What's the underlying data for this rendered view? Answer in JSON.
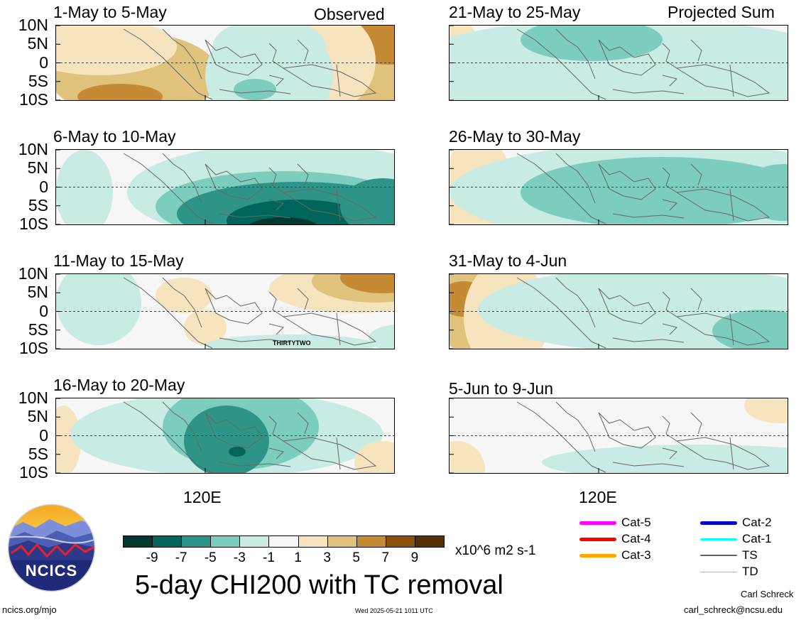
{
  "header": {
    "observed_label": "Observed",
    "projected_label": "Projected Sum"
  },
  "panels": [
    {
      "title": "1-May to 5-May"
    },
    {
      "title": "21-May to 25-May"
    },
    {
      "title": "6-May to 10-May"
    },
    {
      "title": "26-May to 30-May"
    },
    {
      "title": "11-May to 15-May",
      "annotation": "THIRTYTWO"
    },
    {
      "title": "31-May to 4-Jun"
    },
    {
      "title": "16-May to 20-May"
    },
    {
      "title": "5-Jun to 9-Jun"
    }
  ],
  "axes": {
    "lat_labels": [
      "10N",
      "5N",
      "0",
      "5S",
      "10S"
    ],
    "lon_label": "120E"
  },
  "colorbar": {
    "tick_labels": [
      "-9",
      "-7",
      "-5",
      "-3",
      "-1",
      "1",
      "3",
      "5",
      "7",
      "9"
    ],
    "units": "x10^6 m2 s-1",
    "colors": [
      "#00392f",
      "#00655a",
      "#2f9488",
      "#7dcdbf",
      "#c8ebe4",
      "#f6f6f6",
      "#f5e4bd",
      "#dfc27c",
      "#c48a34",
      "#8b510a",
      "#533104"
    ]
  },
  "tc_legend": [
    {
      "label": "Cat-5",
      "color": "#ff00ff"
    },
    {
      "label": "Cat-2",
      "color": "#0000cc"
    },
    {
      "label": "Cat-4",
      "color": "#ff0000"
    },
    {
      "label": "Cat-1",
      "color": "#00ffff"
    },
    {
      "label": "Cat-3",
      "color": "#ffa500"
    },
    {
      "label": "TS",
      "color": "#606060"
    },
    {
      "label": "TD",
      "color": "#b0b0b0"
    }
  ],
  "footer": {
    "main_title": "5-day CHI200 with TC removal",
    "logo_text": "NCICS",
    "website": "ncics.org/mjo",
    "timestamp": "Wed 2025-05-21 1011 UTC",
    "author": "Carl Schreck",
    "email": "carl_schreck@ncsu.edu"
  }
}
